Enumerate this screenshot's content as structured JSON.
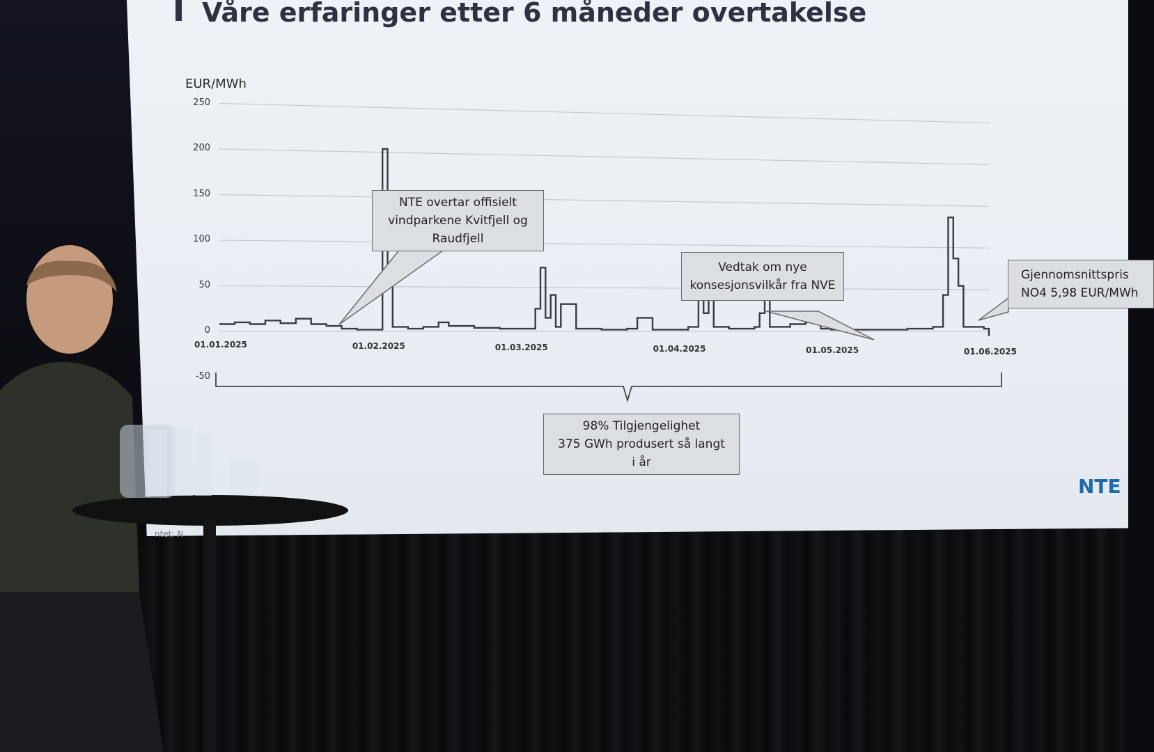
{
  "slide": {
    "title": "Våre erfaringer etter 6 måneder overtakelse",
    "source_fragment": "ntet: N",
    "logo_text": "NTE"
  },
  "chart_data": {
    "type": "line",
    "ylabel": "EUR/MWh",
    "ylim": [
      -50,
      250
    ],
    "yticks": [
      "250",
      "200",
      "150",
      "100",
      "50",
      "0",
      "-50"
    ],
    "xticks": [
      "01.01.2025",
      "01.02.2025",
      "01.03.2025",
      "01.04.2025",
      "01.05.2025",
      "01.06.2025"
    ],
    "x_day_range": [
      0,
      151
    ],
    "grid": true,
    "series": [
      {
        "points": [
          [
            0,
            8
          ],
          [
            3,
            10
          ],
          [
            6,
            8
          ],
          [
            9,
            12
          ],
          [
            12,
            9
          ],
          [
            15,
            14
          ],
          [
            18,
            8
          ],
          [
            21,
            6
          ],
          [
            24,
            3
          ],
          [
            27,
            2
          ],
          [
            30,
            2
          ],
          [
            32,
            200
          ],
          [
            33,
            50
          ],
          [
            34,
            5
          ],
          [
            37,
            3
          ],
          [
            40,
            5
          ],
          [
            43,
            10
          ],
          [
            45,
            6
          ],
          [
            50,
            4
          ],
          [
            55,
            3
          ],
          [
            60,
            3
          ],
          [
            62,
            25
          ],
          [
            63,
            70
          ],
          [
            64,
            15
          ],
          [
            65,
            40
          ],
          [
            66,
            5
          ],
          [
            67,
            30
          ],
          [
            70,
            3
          ],
          [
            75,
            2
          ],
          [
            80,
            3
          ],
          [
            82,
            15
          ],
          [
            85,
            2
          ],
          [
            90,
            2
          ],
          [
            92,
            5
          ],
          [
            94,
            75
          ],
          [
            95,
            20
          ],
          [
            96,
            40
          ],
          [
            97,
            5
          ],
          [
            100,
            3
          ],
          [
            105,
            5
          ],
          [
            106,
            20
          ],
          [
            107,
            50
          ],
          [
            108,
            5
          ],
          [
            112,
            8
          ],
          [
            115,
            10
          ],
          [
            118,
            3
          ],
          [
            120,
            2
          ],
          [
            125,
            2
          ],
          [
            130,
            2
          ],
          [
            135,
            3
          ],
          [
            140,
            5
          ],
          [
            142,
            40
          ],
          [
            143,
            125
          ],
          [
            144,
            80
          ],
          [
            145,
            50
          ],
          [
            146,
            5
          ],
          [
            150,
            3
          ],
          [
            151,
            -5
          ]
        ]
      }
    ],
    "annotations": [
      {
        "lines": [
          "NTE overtar offisielt",
          "vindparkene Kvitfjell og",
          "Raudfjell"
        ]
      },
      {
        "lines": [
          "Vedtak om nye",
          "konsesjonsvilkår fra NVE"
        ]
      },
      {
        "lines": [
          "Gjennomsnittspris",
          "NO4 5,98 EUR/MWh"
        ]
      },
      {
        "lines": [
          "98% Tilgjengelighet",
          "375 GWh produsert så langt",
          "i år"
        ]
      }
    ]
  }
}
